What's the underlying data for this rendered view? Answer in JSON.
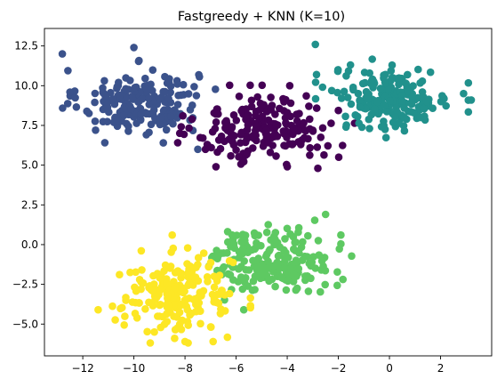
{
  "chart_data": {
    "type": "scatter",
    "title": "Fastgreedy + KNN (K=10)",
    "xlabel": "",
    "ylabel": "",
    "xlim": [
      -13.5,
      4.0
    ],
    "ylim": [
      -7.0,
      13.6
    ],
    "xticks": [
      -12,
      -10,
      -8,
      -6,
      -4,
      -2,
      0,
      2
    ],
    "xtick_labels": [
      "−12",
      "−10",
      "−8",
      "−6",
      "−4",
      "−2",
      "0",
      "2"
    ],
    "yticks": [
      -5.0,
      -2.5,
      0.0,
      2.5,
      5.0,
      7.5,
      10.0,
      12.5
    ],
    "ytick_labels": [
      "−5.0",
      "−2.5",
      "0.0",
      "2.5",
      "5.0",
      "7.5",
      "10.0",
      "12.5"
    ],
    "grid": false,
    "legend": "none",
    "clusters": [
      {
        "color": "#3b528b",
        "center": [
          -9.8,
          9.0
        ],
        "spread": [
          1.15,
          1.0
        ],
        "count": 200,
        "extra_points": [
          [
            -12.8,
            12.0
          ],
          [
            -10.0,
            12.4
          ],
          [
            -7.5,
            6.0
          ],
          [
            -11.5,
            7.2
          ],
          [
            -12.5,
            9.6
          ]
        ]
      },
      {
        "color": "#440154",
        "center": [
          -4.8,
          7.3
        ],
        "spread": [
          1.35,
          1.05
        ],
        "count": 200,
        "extra_points": [
          [
            -3.9,
            10.0
          ],
          [
            -4.0,
            4.9
          ],
          [
            -7.2,
            6.0
          ],
          [
            -2.8,
            4.8
          ]
        ]
      },
      {
        "color": "#21918c",
        "center": [
          0.1,
          9.2
        ],
        "spread": [
          1.15,
          0.95
        ],
        "count": 200,
        "extra_points": [
          [
            -2.9,
            12.6
          ],
          [
            3.2,
            9.1
          ],
          [
            -1.7,
            7.4
          ],
          [
            2.9,
            9.5
          ]
        ]
      },
      {
        "color": "#5ec962",
        "center": [
          -4.6,
          -1.0
        ],
        "spread": [
          1.2,
          1.0
        ],
        "count": 200,
        "extra_points": [
          [
            -2.5,
            1.9
          ],
          [
            -5.7,
            -4.1
          ],
          [
            -6.7,
            -0.7
          ],
          [
            -1.9,
            0.6
          ]
        ]
      },
      {
        "color": "#fde725",
        "center": [
          -8.3,
          -3.2
        ],
        "spread": [
          1.1,
          1.15
        ],
        "count": 200,
        "extra_points": [
          [
            -9.2,
            -5.5
          ],
          [
            -8.0,
            -6.1
          ],
          [
            -6.9,
            -6.1
          ],
          [
            -8.5,
            0.6
          ],
          [
            -11.4,
            -4.1
          ]
        ]
      }
    ]
  }
}
